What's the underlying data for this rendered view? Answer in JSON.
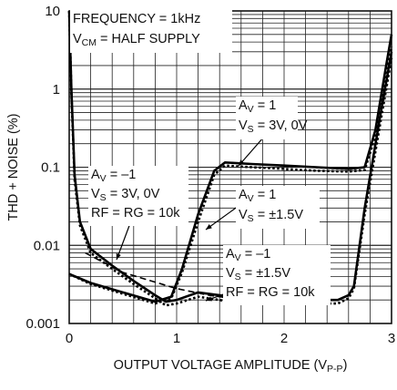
{
  "chart_data": {
    "type": "line",
    "xlabel": "OUTPUT VOLTAGE AMPLITUDE (V",
    "xlabel_sub": "P-P",
    "xlabel_close": ")",
    "ylabel": "THD + NOISE (%)",
    "xlim": [
      0,
      3
    ],
    "ylim": [
      0.001,
      10
    ],
    "yscale": "log",
    "grid": true,
    "x_ticks": [
      "0",
      "1",
      "2",
      "3"
    ],
    "y_ticks": [
      "0.001",
      "0.01",
      "0.1",
      "1",
      "10"
    ],
    "condition_lines": [
      {
        "text": "FREQUENCY = 1kHz"
      },
      {
        "text": "V",
        "sub": "CM",
        "rest": " = HALF SUPPLY"
      }
    ],
    "annotations": [
      {
        "id": "ann1",
        "lines": [
          [
            "A",
            "V",
            " = 1"
          ],
          [
            "V",
            "S",
            " = 3V, 0V"
          ]
        ]
      },
      {
        "id": "ann2",
        "lines": [
          [
            "A",
            "V",
            " = 1"
          ],
          [
            "V",
            "S",
            " = ±1.5V"
          ]
        ]
      },
      {
        "id": "ann3",
        "lines": [
          [
            "A",
            "V",
            " = –1"
          ],
          [
            "V",
            "S",
            " = 3V, 0V"
          ],
          [
            "RF = RG = 10k",
            "",
            ""
          ]
        ]
      },
      {
        "id": "ann4",
        "lines": [
          [
            "A",
            "V",
            " = –1"
          ],
          [
            "V",
            "S",
            " = ±1.5V"
          ],
          [
            "RF = RG = 10k",
            "",
            ""
          ]
        ]
      }
    ],
    "series": [
      {
        "id": "av1-single",
        "style": "solid",
        "x": [
          0.0,
          0.2,
          0.5,
          0.8,
          0.95,
          1.05,
          1.2,
          1.35,
          1.45,
          1.7,
          2.0,
          2.3,
          2.6,
          2.75,
          2.85,
          2.95,
          3.0
        ],
        "y": [
          0.0043,
          0.0033,
          0.0025,
          0.0019,
          0.0022,
          0.005,
          0.025,
          0.09,
          0.115,
          0.11,
          0.105,
          0.1,
          0.095,
          0.1,
          0.3,
          2.0,
          5.0
        ]
      },
      {
        "id": "av1-split",
        "style": "dotted",
        "x": [
          0.0,
          0.2,
          0.5,
          0.8,
          0.95,
          1.05,
          1.2,
          1.35,
          1.45,
          1.7,
          2.0,
          2.3,
          2.6,
          2.75,
          2.85,
          2.95,
          3.0
        ],
        "y": [
          0.0043,
          0.0032,
          0.0024,
          0.0018,
          0.0021,
          0.0045,
          0.02,
          0.08,
          0.105,
          0.1,
          0.095,
          0.09,
          0.088,
          0.092,
          0.25,
          1.5,
          3.5
        ]
      },
      {
        "id": "av-1-single",
        "style": "solid",
        "x": [
          0.0,
          0.02,
          0.05,
          0.1,
          0.2,
          0.4,
          0.6,
          0.8,
          0.9,
          1.0,
          1.2,
          1.5,
          2.0,
          2.5,
          2.6,
          2.65,
          2.75,
          2.9,
          3.0
        ],
        "y": [
          10,
          1.0,
          0.08,
          0.02,
          0.009,
          0.0055,
          0.0035,
          0.0023,
          0.0019,
          0.002,
          0.0025,
          0.0022,
          0.002,
          0.002,
          0.0023,
          0.003,
          0.03,
          0.5,
          3.0
        ]
      },
      {
        "id": "av-1-split",
        "style": "dotted",
        "x": [
          0.0,
          0.02,
          0.05,
          0.1,
          0.2,
          0.4,
          0.6,
          0.8,
          0.9,
          1.0,
          1.2,
          1.5,
          2.0,
          2.5,
          2.6,
          2.65,
          2.75,
          2.9,
          3.0
        ],
        "y": [
          10,
          0.9,
          0.07,
          0.018,
          0.008,
          0.005,
          0.0032,
          0.0021,
          0.0017,
          0.0018,
          0.0022,
          0.0019,
          0.0018,
          0.0018,
          0.0021,
          0.0028,
          0.025,
          0.4,
          2.5
        ]
      },
      {
        "id": "hollow-mid",
        "style": "dashed",
        "x": [
          0.15,
          0.5,
          1.0,
          1.3,
          1.5,
          2.0,
          2.3
        ],
        "y": [
          0.008,
          0.0045,
          0.0028,
          0.0023,
          0.0021,
          0.0019,
          0.0018
        ]
      }
    ]
  }
}
